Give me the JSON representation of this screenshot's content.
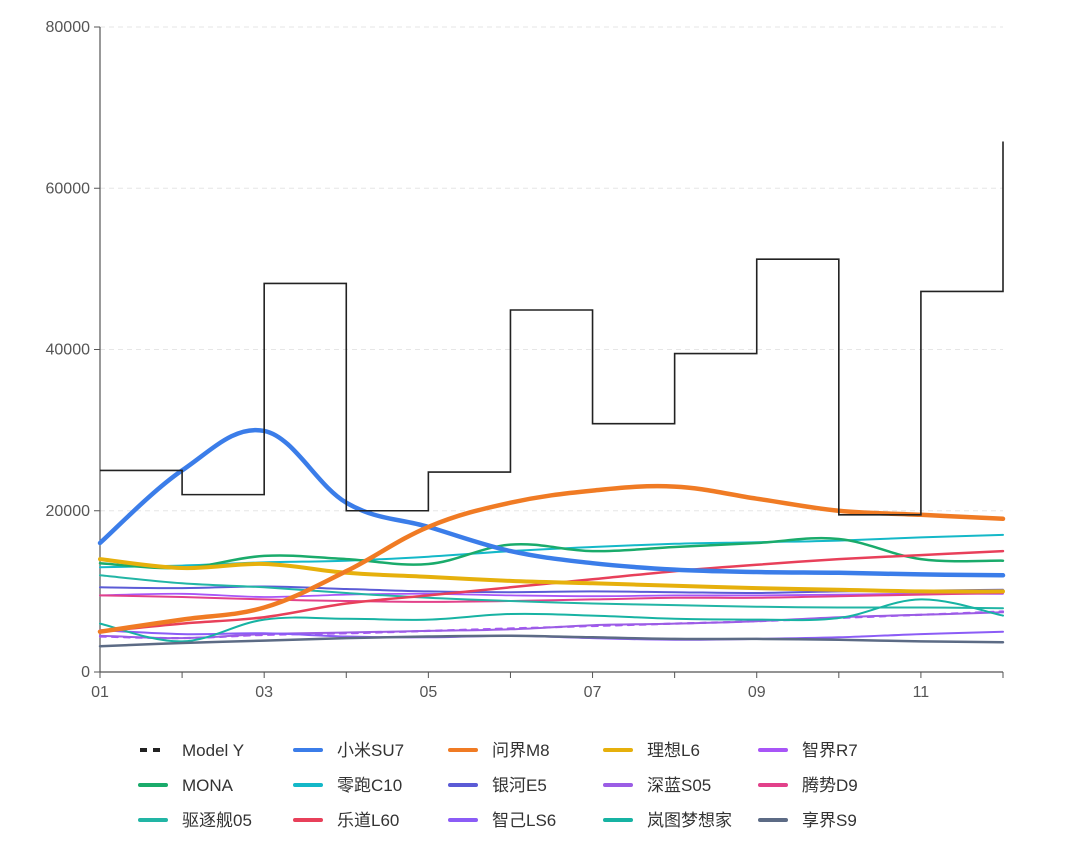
{
  "chart_data": {
    "type": "line",
    "x": [
      "01",
      "02",
      "03",
      "04",
      "05",
      "06",
      "07",
      "08",
      "09",
      "10",
      "11",
      "12"
    ],
    "x_tick_labels": [
      "01",
      "03",
      "05",
      "07",
      "09",
      "11"
    ],
    "ylim": [
      0,
      80000
    ],
    "y_ticks": [
      0,
      20000,
      40000,
      60000,
      80000
    ],
    "y_tick_labels": [
      "0",
      "20000",
      "40000",
      "60000",
      "80000"
    ],
    "grid": true,
    "legend": "bottom",
    "step_series": {
      "color": "#222222",
      "values": [
        25000,
        22000,
        48200,
        20000,
        24800,
        44900,
        30800,
        39500,
        51200,
        19500,
        47200,
        65800
      ]
    },
    "series": [
      {
        "name": "Model Y",
        "color": "#222222",
        "dashed": true,
        "legend_only": true,
        "values": null
      },
      {
        "name": "小米SU7",
        "color": "#3b7de9",
        "width": 4.5,
        "values": [
          16000,
          25000,
          29900,
          21000,
          18000,
          15000,
          13500,
          12700,
          12400,
          12300,
          12100,
          12000
        ]
      },
      {
        "name": "问界M8",
        "color": "#f07b24",
        "width": 4.5,
        "values": [
          5000,
          6500,
          8000,
          12500,
          18000,
          21000,
          22500,
          23000,
          21500,
          20000,
          19500,
          19000
        ]
      },
      {
        "name": "理想L6",
        "color": "#e6b00c",
        "width": 4,
        "values": [
          14000,
          12900,
          13400,
          12300,
          11800,
          11300,
          11000,
          10700,
          10400,
          10200,
          10000,
          10000
        ]
      },
      {
        "name": "智界R7",
        "color": "#a855f7",
        "width": 1.8,
        "values": [
          9500,
          9700,
          9300,
          9600,
          9700,
          9500,
          9400,
          9500,
          9500,
          9600,
          9700,
          9700
        ]
      },
      {
        "name": "MONA",
        "color": "#1aab6b",
        "width": 2.5,
        "values": [
          13500,
          12900,
          14400,
          14000,
          13400,
          15800,
          15000,
          15500,
          16000,
          16500,
          14000,
          13800
        ]
      },
      {
        "name": "零跑C10",
        "color": "#14b8c8",
        "width": 2,
        "values": [
          13000,
          13200,
          13600,
          13800,
          14300,
          15000,
          15500,
          15900,
          16100,
          16300,
          16700,
          17000
        ]
      },
      {
        "name": "银河E5",
        "color": "#5b5bd6",
        "width": 2,
        "values": [
          10500,
          10400,
          10600,
          10300,
          10000,
          9900,
          10000,
          9900,
          9800,
          10000,
          10100,
          10200
        ]
      },
      {
        "name": "深蓝S05",
        "color": "#9b5de5",
        "width": 2,
        "values": [
          4500,
          4200,
          4700,
          4900,
          5100,
          5300,
          5800,
          6000,
          6300,
          6800,
          7100,
          7400
        ]
      },
      {
        "name": "腾势D9",
        "color": "#e2418a",
        "width": 2,
        "values": [
          9500,
          9300,
          9000,
          8800,
          8700,
          8800,
          9000,
          9200,
          9200,
          9400,
          9600,
          9800
        ]
      },
      {
        "name": "驱逐舰05",
        "color": "#22b5a5",
        "width": 2,
        "values": [
          12000,
          11000,
          10500,
          9800,
          9200,
          8800,
          8500,
          8300,
          8100,
          8000,
          8000,
          7900
        ]
      },
      {
        "name": "乐道L60",
        "color": "#e8405a",
        "width": 2.5,
        "values": null
      },
      {
        "name": "智己LS6",
        "color": "#8b5cf6",
        "width": 2,
        "values": [
          5200,
          4700,
          4800,
          4400,
          4300,
          4500,
          4200,
          4000,
          4100,
          4300,
          4700,
          5000
        ]
      },
      {
        "name": "岚图梦想家",
        "color": "#17b3a3",
        "width": 2,
        "values": [
          6000,
          3800,
          6500,
          6600,
          6500,
          7200,
          7000,
          6600,
          6500,
          6700,
          9000,
          7000
        ]
      },
      {
        "name": "享界S9",
        "color": "#5c6b85",
        "width": 2.5,
        "values": [
          3200,
          3600,
          3900,
          4200,
          4400,
          4500,
          4300,
          4100,
          4100,
          4000,
          3800,
          3700
        ]
      }
    ],
    "extra_lines": [
      {
        "series_ref": "乐道L60",
        "values": [
          5000,
          6000,
          6800,
          8500,
          9500,
          10500,
          11500,
          12500,
          13300,
          14000,
          14500,
          15000
        ]
      },
      {
        "series_ref": "Model Y",
        "values": [
          4400,
          4200,
          4600,
          4800,
          5100,
          5400,
          5700,
          6000,
          6300,
          6700,
          7100,
          7500
        ]
      }
    ]
  }
}
